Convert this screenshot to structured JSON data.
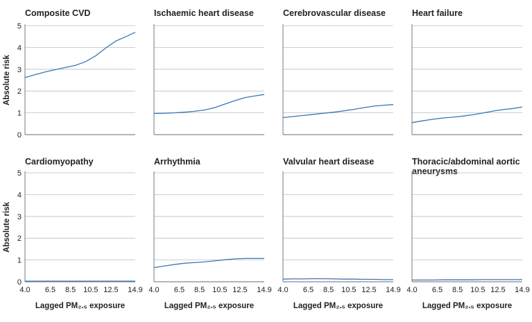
{
  "chart_data": [
    {
      "type": "line",
      "title": "Composite CVD",
      "xlabel": "",
      "ylabel": "Absolute risk",
      "ylim": [
        0,
        5
      ],
      "yticks": [
        "0",
        "1",
        "2",
        "3",
        "4",
        "5"
      ],
      "xlim": [
        4.0,
        14.9
      ],
      "xticks": [],
      "grid": true,
      "series": [
        {
          "x": [
            4.0,
            5.0,
            6.0,
            7.0,
            8.0,
            9.0,
            10.0,
            11.0,
            12.0,
            13.0,
            14.0,
            14.9
          ],
          "values": [
            2.62,
            2.75,
            2.88,
            2.98,
            3.08,
            3.18,
            3.35,
            3.62,
            3.98,
            4.3,
            4.5,
            4.7
          ]
        }
      ]
    },
    {
      "type": "line",
      "title": "Ischaemic heart disease",
      "xlabel": "",
      "ylabel": "",
      "ylim": [
        0,
        5
      ],
      "xlim": [
        4.0,
        14.9
      ],
      "grid": true,
      "series": [
        {
          "x": [
            4.0,
            5.0,
            6.0,
            7.0,
            8.0,
            9.0,
            10.0,
            11.0,
            12.0,
            13.0,
            14.0,
            14.9
          ],
          "values": [
            0.97,
            0.98,
            1.0,
            1.03,
            1.07,
            1.13,
            1.24,
            1.4,
            1.56,
            1.7,
            1.78,
            1.84
          ]
        }
      ]
    },
    {
      "type": "line",
      "title": "Cerebrovascular disease",
      "xlabel": "",
      "ylabel": "",
      "ylim": [
        0,
        5
      ],
      "xlim": [
        4.0,
        14.9
      ],
      "grid": true,
      "series": [
        {
          "x": [
            4.0,
            5.0,
            6.0,
            7.0,
            8.0,
            9.0,
            10.0,
            11.0,
            12.0,
            13.0,
            14.0,
            14.9
          ],
          "values": [
            0.78,
            0.83,
            0.88,
            0.93,
            0.98,
            1.03,
            1.09,
            1.16,
            1.24,
            1.31,
            1.35,
            1.38
          ]
        }
      ]
    },
    {
      "type": "line",
      "title": "Heart failure",
      "xlabel": "",
      "ylabel": "",
      "ylim": [
        0,
        5
      ],
      "xlim": [
        4.0,
        14.9
      ],
      "grid": true,
      "series": [
        {
          "x": [
            4.0,
            5.0,
            6.0,
            7.0,
            8.0,
            9.0,
            10.0,
            11.0,
            12.0,
            13.0,
            14.0,
            14.9
          ],
          "values": [
            0.55,
            0.63,
            0.7,
            0.76,
            0.8,
            0.85,
            0.91,
            0.99,
            1.08,
            1.15,
            1.2,
            1.27
          ]
        }
      ]
    },
    {
      "type": "line",
      "title": "Cardiomyopathy",
      "xlabel": "Lagged PM₂.₅ exposure",
      "ylabel": "Absolute risk",
      "ylim": [
        0,
        5
      ],
      "yticks": [
        "0",
        "1",
        "2",
        "3",
        "4",
        "5"
      ],
      "xlim": [
        4.0,
        14.9
      ],
      "xticks": [
        "4.0",
        "6.5",
        "8.5",
        "10.5",
        "12.5",
        "14.9"
      ],
      "grid": true,
      "series": [
        {
          "x": [
            4.0,
            5.0,
            6.0,
            7.0,
            8.0,
            9.0,
            10.0,
            11.0,
            12.0,
            13.0,
            14.0,
            14.9
          ],
          "values": [
            0.03,
            0.03,
            0.03,
            0.03,
            0.03,
            0.03,
            0.03,
            0.03,
            0.03,
            0.03,
            0.03,
            0.03
          ]
        }
      ]
    },
    {
      "type": "line",
      "title": "Arrhythmia",
      "xlabel": "Lagged PM₂.₅ exposure",
      "ylabel": "",
      "ylim": [
        0,
        5
      ],
      "xlim": [
        4.0,
        14.9
      ],
      "xticks": [
        "4.0",
        "6.5",
        "8.5",
        "10.5",
        "12.5",
        "14.9"
      ],
      "grid": true,
      "series": [
        {
          "x": [
            4.0,
            5.0,
            6.0,
            7.0,
            8.0,
            9.0,
            10.0,
            11.0,
            12.0,
            13.0,
            14.0,
            14.9
          ],
          "values": [
            0.65,
            0.72,
            0.79,
            0.85,
            0.88,
            0.91,
            0.96,
            1.01,
            1.05,
            1.07,
            1.07,
            1.07
          ]
        }
      ]
    },
    {
      "type": "line",
      "title": "Valvular heart disease",
      "xlabel": "Lagged PM₂.₅ exposure",
      "ylabel": "",
      "ylim": [
        0,
        5
      ],
      "xlim": [
        4.0,
        14.9
      ],
      "xticks": [
        "4.0",
        "6.5",
        "8.5",
        "10.5",
        "12.5",
        "14.9"
      ],
      "grid": true,
      "series": [
        {
          "x": [
            4.0,
            5.0,
            6.0,
            7.0,
            8.0,
            9.0,
            10.0,
            11.0,
            12.0,
            13.0,
            14.0,
            14.9
          ],
          "values": [
            0.12,
            0.13,
            0.13,
            0.14,
            0.14,
            0.13,
            0.12,
            0.12,
            0.11,
            0.11,
            0.1,
            0.1
          ]
        }
      ]
    },
    {
      "type": "line",
      "title": "Thoracic/abdominal aortic aneurysms",
      "title_lines": [
        "Thoracic/abdominal aortic",
        "aneurysms"
      ],
      "xlabel": "Lagged PM₂.₅ exposure",
      "ylabel": "",
      "ylim": [
        0,
        5
      ],
      "xlim": [
        4.0,
        14.9
      ],
      "xticks": [
        "4.0",
        "6.5",
        "8.5",
        "10.5",
        "12.5",
        "14.9"
      ],
      "grid": true,
      "series": [
        {
          "x": [
            4.0,
            5.0,
            6.0,
            7.0,
            8.0,
            9.0,
            10.0,
            11.0,
            12.0,
            13.0,
            14.0,
            14.9
          ],
          "values": [
            0.08,
            0.08,
            0.08,
            0.09,
            0.09,
            0.09,
            0.09,
            0.1,
            0.1,
            0.1,
            0.1,
            0.1
          ]
        }
      ]
    }
  ],
  "style": {
    "line_color": "#3a76b4",
    "grid_color": "#bdbdbd",
    "axis_color": "#6b6b6b",
    "text_color": "#222222"
  }
}
